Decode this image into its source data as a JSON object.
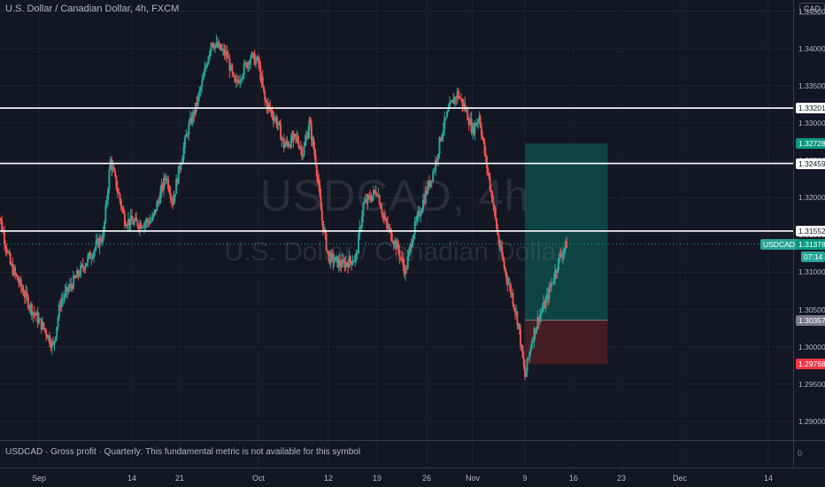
{
  "header": {
    "title": "U.S. Dollar / Canadian Dollar, 4h, FXCM",
    "currency": "CAD"
  },
  "watermark": {
    "symbol": "USDCAD, 4h",
    "name": "U.S. Dollar / Canadian Dollar"
  },
  "footer": {
    "fundamental_note": "USDCAD · Gross profit · Quarterly: This fundamental metric is not available for this symbol",
    "indicator_axis_zero": "0"
  },
  "colors": {
    "background": "#131722",
    "up": "#26a69a",
    "down": "#ef5350",
    "level": "#ffffff",
    "target_zone": "#0d4b47",
    "stop_zone": "#4a1d24"
  },
  "chart_data": {
    "type": "candlestick",
    "symbol": "USDCAD",
    "timeframe": "4h",
    "x_tick_labels": [
      "Sep",
      "14",
      "21",
      "Oct",
      "12",
      "19",
      "26",
      "Nov",
      "9",
      "16",
      "23",
      "Dec",
      "14"
    ],
    "x_ticks": [
      {
        "label": "Sep",
        "date": "2020-09-01"
      },
      {
        "label": "14",
        "date": "2020-09-14"
      },
      {
        "label": "21",
        "date": "2020-09-21"
      },
      {
        "label": "Oct",
        "date": "2020-10-01"
      },
      {
        "label": "12",
        "date": "2020-10-12"
      },
      {
        "label": "19",
        "date": "2020-10-19"
      },
      {
        "label": "26",
        "date": "2020-10-26"
      },
      {
        "label": "Nov",
        "date": "2020-11-01"
      },
      {
        "label": "9",
        "date": "2020-11-09"
      },
      {
        "label": "16",
        "date": "2020-11-16"
      },
      {
        "label": "23",
        "date": "2020-11-23"
      },
      {
        "label": "Dec",
        "date": "2020-12-01"
      },
      {
        "label": "14",
        "date": "2020-12-14"
      }
    ],
    "y_tick_labels": [
      "1.34500",
      "1.34000",
      "1.33500",
      "1.33000",
      "1.32500",
      "1.32000",
      "1.31500",
      "1.31000",
      "1.30500",
      "1.30000",
      "1.29500",
      "1.29000"
    ],
    "y_range": [
      1.2875,
      1.3465
    ],
    "horizontal_levels": [
      "1.33201",
      "1.32459",
      "1.31552"
    ],
    "last_price": {
      "symbol": "USDCAD",
      "value": "1.31378",
      "countdown": "07:14"
    },
    "position": {
      "type": "long",
      "target": "1.32728",
      "entry": "1.30357",
      "stop": "1.29768",
      "start_date": "2020-11-09",
      "end_date": "2020-11-21"
    },
    "price_path": [
      {
        "date": "2020-08-26",
        "close": 1.3195
      },
      {
        "date": "2020-08-28",
        "close": 1.311
      },
      {
        "date": "2020-08-31",
        "close": 1.305
      },
      {
        "date": "2020-09-02",
        "close": 1.302
      },
      {
        "date": "2020-09-03",
        "close": 1.3
      },
      {
        "date": "2020-09-04",
        "close": 1.306
      },
      {
        "date": "2020-09-06",
        "close": 1.309
      },
      {
        "date": "2020-09-08",
        "close": 1.312
      },
      {
        "date": "2020-09-10",
        "close": 1.315
      },
      {
        "date": "2020-09-11",
        "close": 1.325
      },
      {
        "date": "2020-09-13",
        "close": 1.317
      },
      {
        "date": "2020-09-15",
        "close": 1.3165
      },
      {
        "date": "2020-09-17",
        "close": 1.317
      },
      {
        "date": "2020-09-19",
        "close": 1.323
      },
      {
        "date": "2020-09-20",
        "close": 1.3195
      },
      {
        "date": "2020-09-22",
        "close": 1.329
      },
      {
        "date": "2020-09-23",
        "close": 1.332
      },
      {
        "date": "2020-09-24",
        "close": 1.336
      },
      {
        "date": "2020-09-25",
        "close": 1.341
      },
      {
        "date": "2020-09-27",
        "close": 1.339
      },
      {
        "date": "2020-09-28",
        "close": 1.335
      },
      {
        "date": "2020-09-30",
        "close": 1.339
      },
      {
        "date": "2020-10-01",
        "close": 1.338
      },
      {
        "date": "2020-10-02",
        "close": 1.333
      },
      {
        "date": "2020-10-04",
        "close": 1.33
      },
      {
        "date": "2020-10-05",
        "close": 1.327
      },
      {
        "date": "2020-10-07",
        "close": 1.328
      },
      {
        "date": "2020-10-08",
        "close": 1.326
      },
      {
        "date": "2020-10-09",
        "close": 1.33
      },
      {
        "date": "2020-10-10",
        "close": 1.325
      },
      {
        "date": "2020-10-11",
        "close": 1.317
      },
      {
        "date": "2020-10-12",
        "close": 1.312
      },
      {
        "date": "2020-10-14",
        "close": 1.311
      },
      {
        "date": "2020-10-16",
        "close": 1.312
      },
      {
        "date": "2020-10-17",
        "close": 1.319
      },
      {
        "date": "2020-10-19",
        "close": 1.321
      },
      {
        "date": "2020-10-20",
        "close": 1.317
      },
      {
        "date": "2020-10-22",
        "close": 1.313
      },
      {
        "date": "2020-10-23",
        "close": 1.31
      },
      {
        "date": "2020-10-24",
        "close": 1.315
      },
      {
        "date": "2020-10-25",
        "close": 1.318
      },
      {
        "date": "2020-10-26",
        "close": 1.321
      },
      {
        "date": "2020-10-27",
        "close": 1.324
      },
      {
        "date": "2020-10-28",
        "close": 1.329
      },
      {
        "date": "2020-10-29",
        "close": 1.332
      },
      {
        "date": "2020-10-30",
        "close": 1.334
      },
      {
        "date": "2020-10-31",
        "close": 1.332
      },
      {
        "date": "2020-11-01",
        "close": 1.329
      },
      {
        "date": "2020-11-02",
        "close": 1.331
      },
      {
        "date": "2020-11-03",
        "close": 1.325
      },
      {
        "date": "2020-11-04",
        "close": 1.32
      },
      {
        "date": "2020-11-05",
        "close": 1.314
      },
      {
        "date": "2020-11-06",
        "close": 1.31
      },
      {
        "date": "2020-11-07",
        "close": 1.307
      },
      {
        "date": "2020-11-08",
        "close": 1.303
      },
      {
        "date": "2020-11-09",
        "close": 1.296
      },
      {
        "date": "2020-11-10",
        "close": 1.301
      },
      {
        "date": "2020-11-11",
        "close": 1.304
      },
      {
        "date": "2020-11-12",
        "close": 1.306
      },
      {
        "date": "2020-11-13",
        "close": 1.309
      },
      {
        "date": "2020-11-14",
        "close": 1.312
      },
      {
        "date": "2020-11-15",
        "close": 1.31378
      }
    ]
  }
}
